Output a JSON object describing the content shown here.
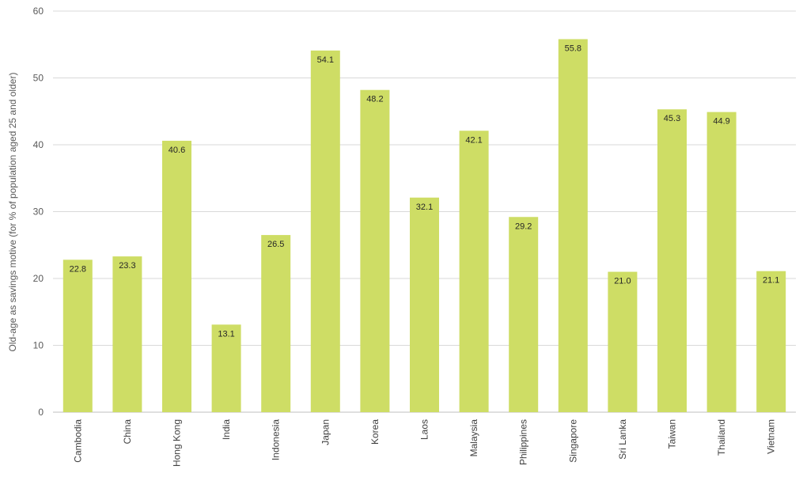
{
  "chart_data": {
    "type": "bar",
    "title": "",
    "xlabel": "",
    "ylabel": "Old-age as savings motive (for % of population aged 25 and older)",
    "categories": [
      "Cambodia",
      "China",
      "Hong Kong",
      "India",
      "Indonesia",
      "Japan",
      "Korea",
      "Laos",
      "Malaysia",
      "Philippines",
      "Singapore",
      "Sri Lanka",
      "Taiwan",
      "Thailand",
      "Vietnam"
    ],
    "values": [
      22.8,
      23.3,
      40.6,
      13.1,
      26.5,
      54.1,
      48.2,
      32.1,
      42.1,
      29.2,
      55.8,
      21.0,
      45.3,
      44.9,
      21.1
    ],
    "value_labels": [
      "22.8",
      "23.3",
      "40.6",
      "13.1",
      "26.5",
      "54.1",
      "48.2",
      "32.1",
      "42.1",
      "29.2",
      "55.8",
      "21.0",
      "45.3",
      "44.9",
      "21.1"
    ],
    "ylim": [
      0,
      60
    ],
    "yticks": [
      "0",
      "10",
      "20",
      "30",
      "40",
      "50",
      "60"
    ],
    "grid": true,
    "legend": "none",
    "colors": {
      "bar": "#cedd65",
      "grid": "#d9d9d9",
      "axis": "#bfbfbf"
    }
  }
}
